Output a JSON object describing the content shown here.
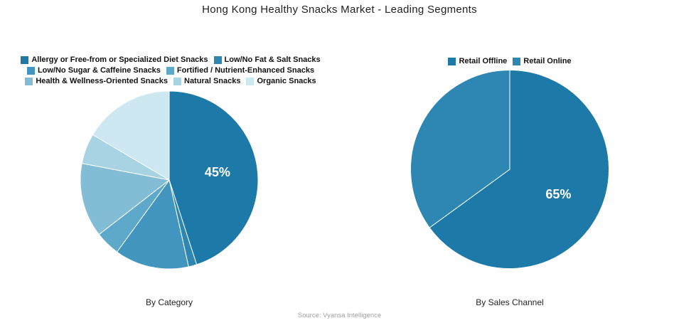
{
  "page": {
    "title": "Hong Kong Healthy Snacks Market - Leading Segments",
    "source": "Source: Vyansa Intelligence"
  },
  "chart_data": [
    {
      "type": "pie",
      "title": "By Category",
      "legend_position": "top",
      "start_angle_deg": 0,
      "direction": "clockwise",
      "slices": [
        {
          "label": "Allergy or Free-from or Specialized Diet Snacks",
          "value": 45,
          "color": "#1d79a8",
          "shown_label": "45%"
        },
        {
          "label": "Low/No Fat & Salt Snacks",
          "value": 1.5,
          "color": "#2d87b2",
          "shown_label": ""
        },
        {
          "label": "Low/No Sugar & Caffeine Snacks",
          "value": 13.5,
          "color": "#4195be",
          "shown_label": ""
        },
        {
          "label": "Fortified / Nutrient-Enhanced Snacks",
          "value": 4.5,
          "color": "#5ea9c9",
          "shown_label": ""
        },
        {
          "label": "Health & Wellness-Oriented Snacks",
          "value": 13.5,
          "color": "#82bdd5",
          "shown_label": ""
        },
        {
          "label": "Natural Snacks",
          "value": 5.5,
          "color": "#a8d3e3",
          "shown_label": ""
        },
        {
          "label": "Organic Snacks",
          "value": 16.5,
          "color": "#cde8f0",
          "shown_label": ""
        }
      ]
    },
    {
      "type": "pie",
      "title": "By Sales Channel",
      "legend_position": "top",
      "start_angle_deg": 0,
      "direction": "clockwise",
      "slices": [
        {
          "label": "Retail Offline",
          "value": 65,
          "color": "#1d79a8",
          "shown_label": "65%"
        },
        {
          "label": "Retail Online",
          "value": 35,
          "color": "#2d87b2",
          "shown_label": ""
        }
      ]
    }
  ]
}
